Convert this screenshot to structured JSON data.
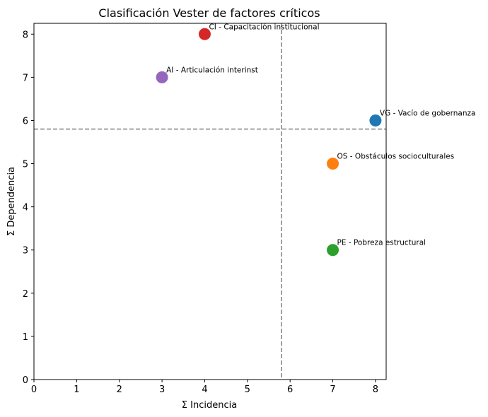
{
  "chart_data": {
    "type": "scatter",
    "title": "Clasificación Vester de factores críticos",
    "xlabel": "Σ Incidencia",
    "ylabel": "Σ Dependencia",
    "xlim": [
      0,
      8.25
    ],
    "ylim": [
      0,
      8.25
    ],
    "xticks": [
      "0",
      "1",
      "2",
      "3",
      "4",
      "5",
      "6",
      "7",
      "8"
    ],
    "yticks": [
      "0",
      "1",
      "2",
      "3",
      "4",
      "5",
      "6",
      "7",
      "8"
    ],
    "grid": false,
    "reference_lines": {
      "x": 5.8,
      "y": 5.8,
      "style": "dashed",
      "color": "#808080"
    },
    "points": [
      {
        "label": "VG - Vacío de gobernanza",
        "x": 8,
        "y": 6,
        "color": "#1f77b4"
      },
      {
        "label": "OS - Obstáculos socioculturales",
        "x": 7,
        "y": 5,
        "color": "#ff7f0e"
      },
      {
        "label": "PE - Pobreza estructural",
        "x": 7,
        "y": 3,
        "color": "#2ca02c"
      },
      {
        "label": "CI - Capacitación institucional",
        "x": 4,
        "y": 8,
        "color": "#d62728"
      },
      {
        "label": "AI - Articulación interinst",
        "x": 3,
        "y": 7,
        "color": "#9467bd"
      }
    ]
  }
}
